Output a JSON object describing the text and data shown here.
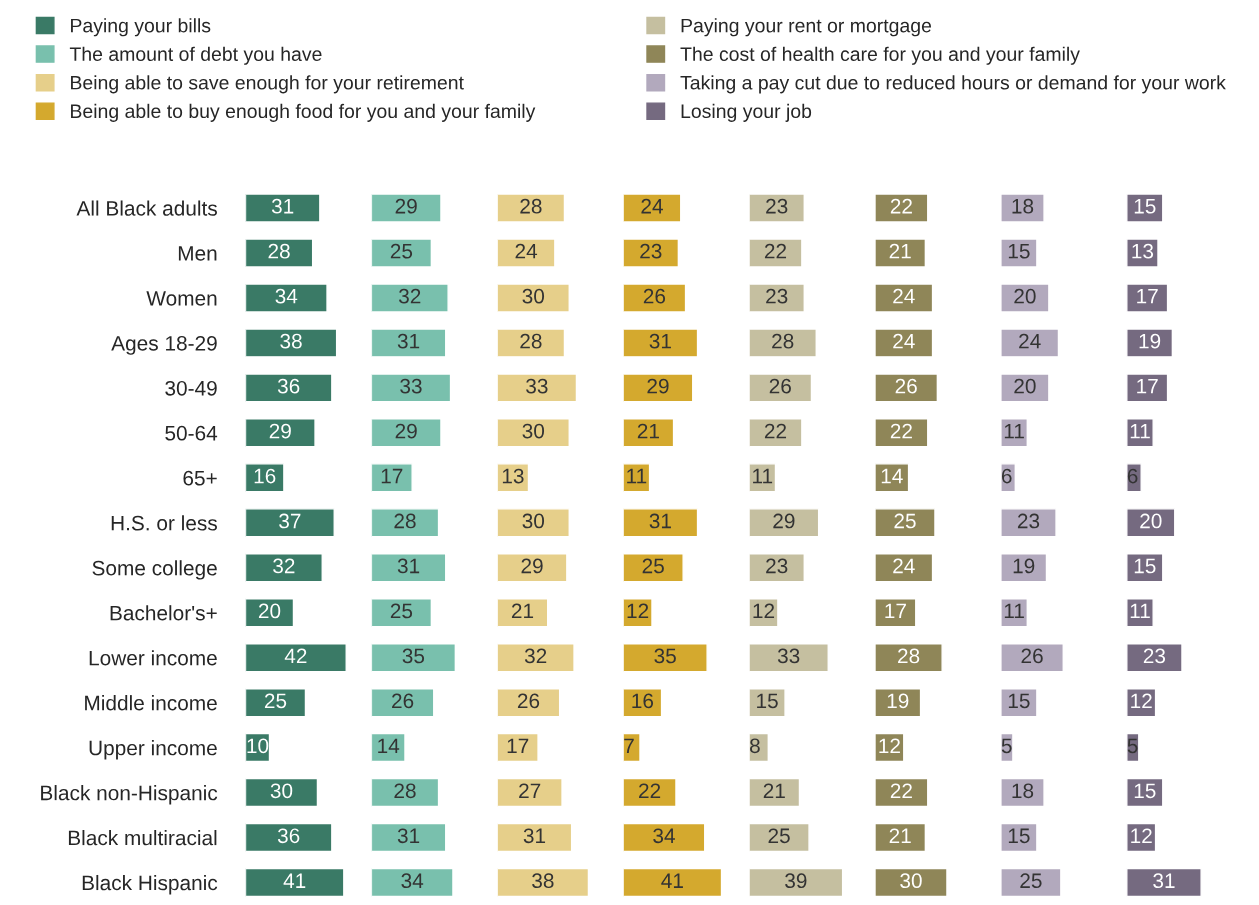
{
  "chart_data": [
    {
      "type": "bar",
      "orientation": "horizontal",
      "data_labels": true,
      "tick_labels": "y",
      "legend": "top",
      "categories": [
        "All Black adults",
        "Men",
        "Women",
        "Ages 18-29",
        "30-49",
        "50-64",
        "65+",
        "H.S. or less",
        "Some college",
        "Bachelor's+",
        "Lower income",
        "Middle income",
        "Upper income",
        "Black non-Hispanic",
        "Black multiracial",
        "Black Hispanic"
      ],
      "series": [
        {
          "name": "Paying your bills",
          "color": "#3a7a66",
          "values": [
            31,
            28,
            34,
            38,
            36,
            29,
            16,
            37,
            32,
            20,
            42,
            25,
            10,
            30,
            36,
            41
          ]
        }
      ]
    },
    {
      "type": "bar",
      "orientation": "horizontal",
      "data_labels": true,
      "tick_labels": false,
      "legend": "top",
      "series": [
        {
          "name": "The amount of debt you have",
          "color": "#79c0ad",
          "values": [
            29,
            25,
            32,
            31,
            33,
            29,
            17,
            28,
            31,
            25,
            35,
            26,
            14,
            28,
            31,
            34
          ]
        }
      ]
    },
    {
      "type": "bar",
      "orientation": "horizontal",
      "data_labels": true,
      "tick_labels": false,
      "legend": "top",
      "series": [
        {
          "name": "Being able to save enough for your retirement",
          "color": "#e6cf8a",
          "values": [
            28,
            24,
            30,
            28,
            33,
            30,
            13,
            30,
            29,
            21,
            32,
            26,
            17,
            27,
            31,
            38
          ]
        }
      ]
    },
    {
      "type": "bar",
      "orientation": "horizontal",
      "data_labels": true,
      "tick_labels": false,
      "legend": "top",
      "series": [
        {
          "name": "Being able to buy enough food for you and your family",
          "color": "#d4a92e",
          "values": [
            24,
            23,
            26,
            31,
            29,
            21,
            11,
            31,
            25,
            12,
            35,
            16,
            7,
            22,
            34,
            41
          ]
        }
      ]
    },
    {
      "type": "bar",
      "orientation": "horizontal",
      "data_labels": true,
      "tick_labels": false,
      "legend": "top",
      "series": [
        {
          "name": "Paying your rent or mortgage",
          "color": "#c5bfa0",
          "values": [
            23,
            22,
            23,
            28,
            26,
            22,
            11,
            29,
            23,
            12,
            33,
            15,
            8,
            21,
            25,
            39
          ]
        }
      ]
    },
    {
      "type": "bar",
      "orientation": "horizontal",
      "data_labels": true,
      "tick_labels": false,
      "legend": "top",
      "series": [
        {
          "name": "The cost of health care for you and your family",
          "color": "#8f8658",
          "values": [
            22,
            21,
            24,
            24,
            26,
            22,
            14,
            25,
            24,
            17,
            28,
            19,
            12,
            22,
            21,
            30
          ]
        }
      ]
    },
    {
      "type": "bar",
      "orientation": "horizontal",
      "data_labels": true,
      "tick_labels": false,
      "legend": "top",
      "series": [
        {
          "name": "Taking a pay cut due to reduced hours or demand for your work",
          "color": "#b2a9bd",
          "values": [
            18,
            15,
            20,
            24,
            20,
            11,
            6,
            23,
            19,
            11,
            26,
            15,
            5,
            18,
            15,
            25
          ]
        }
      ]
    },
    {
      "type": "bar",
      "orientation": "horizontal",
      "data_labels": true,
      "tick_labels": false,
      "legend": "top",
      "series": [
        {
          "name": "Losing your job",
          "color": "#756a80",
          "values": [
            15,
            13,
            17,
            19,
            17,
            11,
            6,
            20,
            15,
            11,
            23,
            12,
            5,
            15,
            12,
            31
          ]
        }
      ]
    }
  ]
}
